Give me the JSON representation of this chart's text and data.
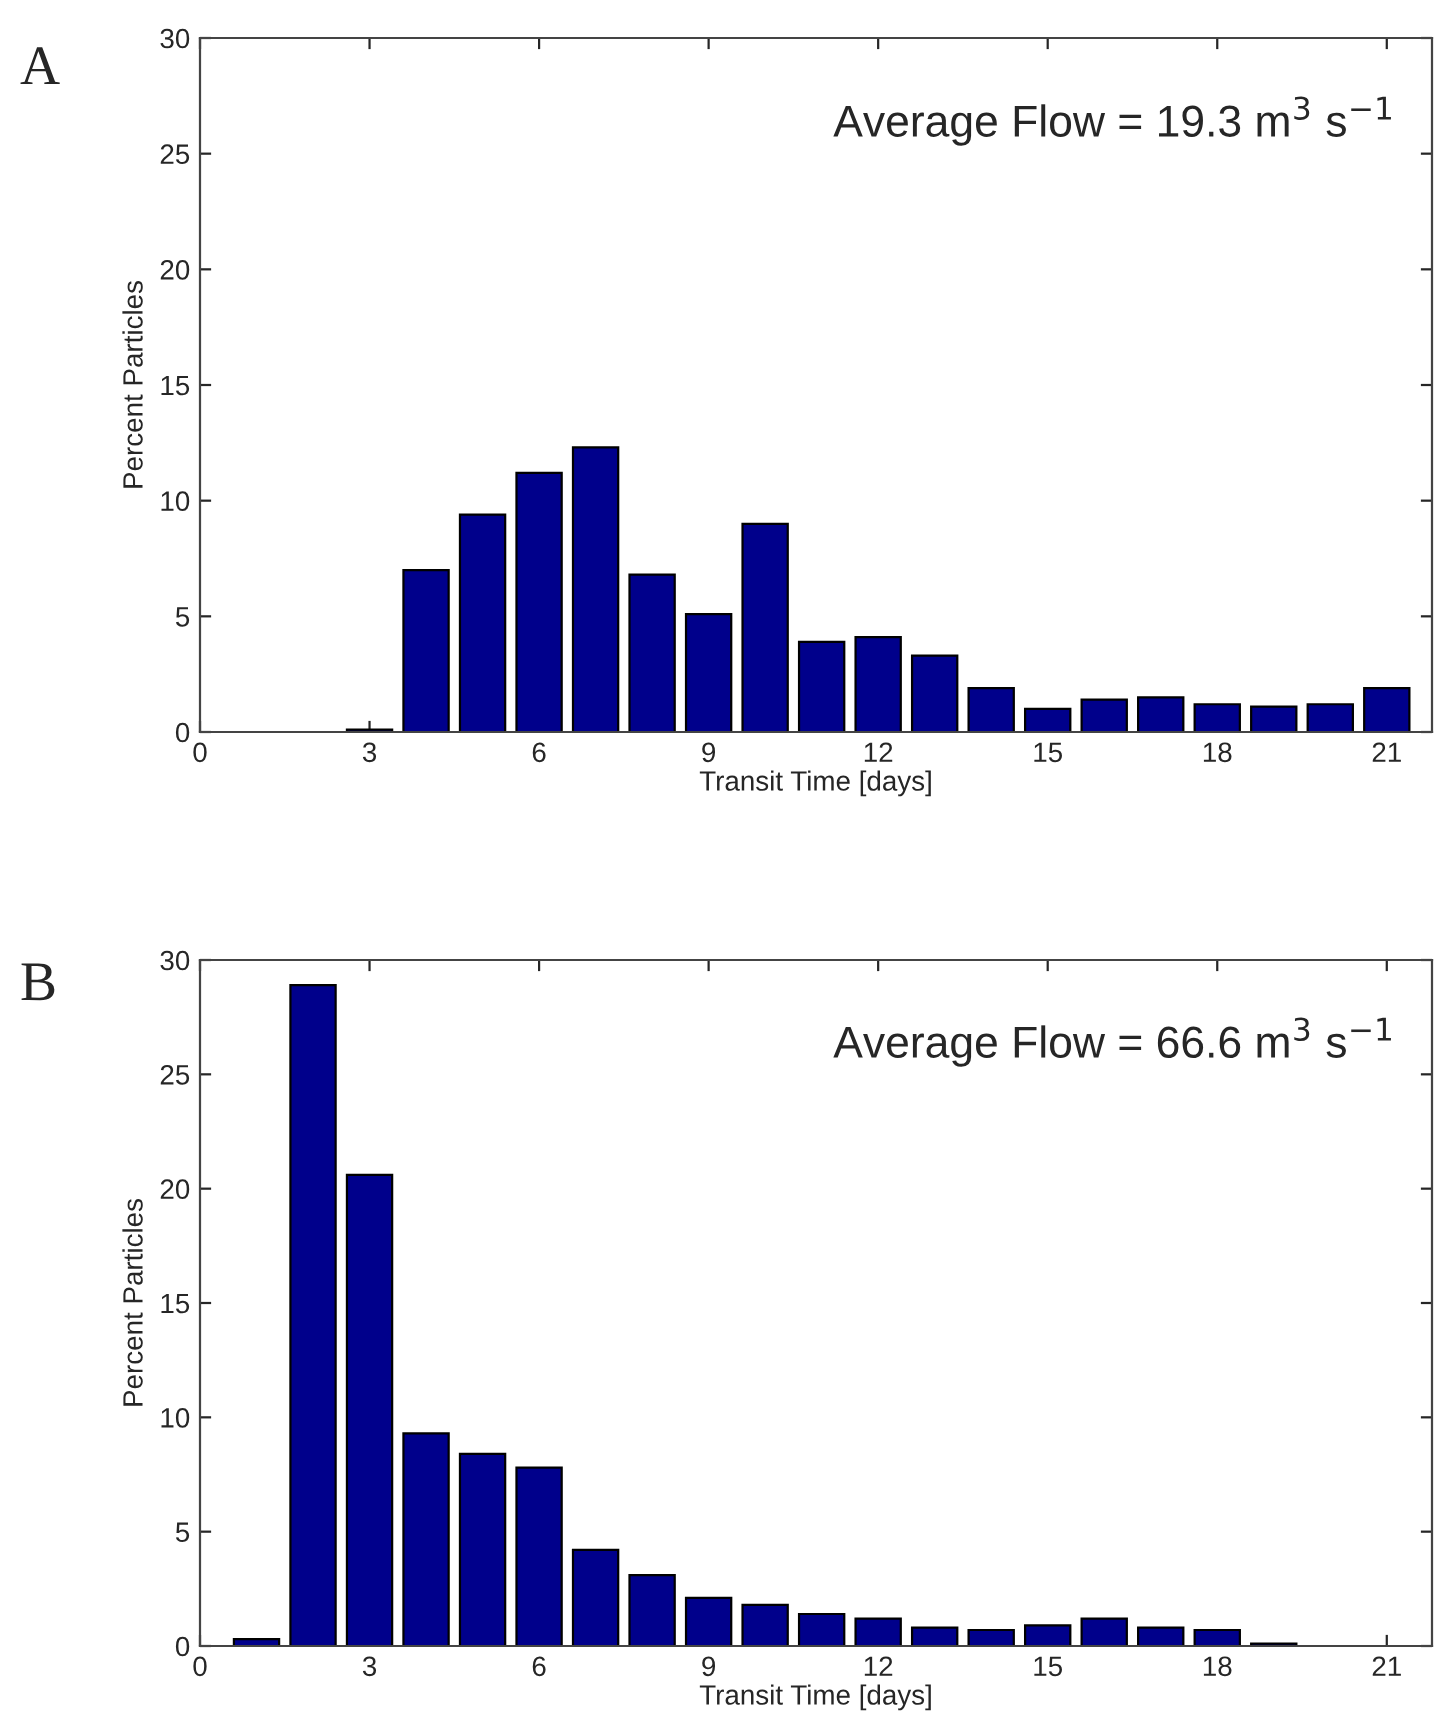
{
  "chart_data": [
    {
      "type": "bar",
      "xlabel": "Transit Time [days]",
      "ylabel": "Percent Particles",
      "annotations": [
        "A",
        "Average Flow = 19.3 m$^{3}$ s$^{−1}$"
      ],
      "x": [
        3,
        4,
        5,
        6,
        7,
        8,
        9,
        10,
        11,
        12,
        13,
        14,
        15,
        16,
        17,
        18,
        19,
        20,
        21
      ],
      "series": [
        {
          "color": "#00008b",
          "values": [
            0.1,
            7.0,
            9.4,
            11.2,
            12.3,
            6.8,
            5.1,
            9.0,
            3.9,
            4.1,
            3.3,
            1.9,
            1.0,
            1.4,
            1.5,
            1.2,
            1.1,
            1.2,
            1.9
          ]
        }
      ],
      "xlim": [
        0,
        21.8
      ],
      "xticks": [
        0,
        3,
        6,
        9,
        12,
        15,
        18,
        21
      ],
      "ylim": [
        0,
        30
      ],
      "yticks": [
        0,
        5,
        10,
        15,
        20,
        25,
        30
      ],
      "grid": false,
      "legend": false
    },
    {
      "type": "bar",
      "xlabel": "Transit Time [days]",
      "ylabel": "Percent Particles",
      "annotations": [
        "B",
        "Average Flow = 66.6 m$^{3}$ s$^{−1}$"
      ],
      "x": [
        1,
        2,
        3,
        4,
        5,
        6,
        7,
        8,
        9,
        10,
        11,
        12,
        13,
        14,
        15,
        16,
        17,
        18,
        19
      ],
      "series": [
        {
          "color": "#00008b",
          "values": [
            0.3,
            28.9,
            20.6,
            9.3,
            8.4,
            7.8,
            4.2,
            3.1,
            2.1,
            1.8,
            1.4,
            1.2,
            0.8,
            0.7,
            0.9,
            1.2,
            0.8,
            0.7,
            0.1
          ]
        }
      ],
      "xlim": [
        0,
        21.8
      ],
      "xticks": [
        0,
        3,
        6,
        9,
        12,
        15,
        18,
        21
      ],
      "ylim": [
        0,
        30
      ],
      "yticks": [
        0,
        5,
        10,
        15,
        20,
        25,
        30
      ],
      "grid": false,
      "legend": false
    }
  ]
}
